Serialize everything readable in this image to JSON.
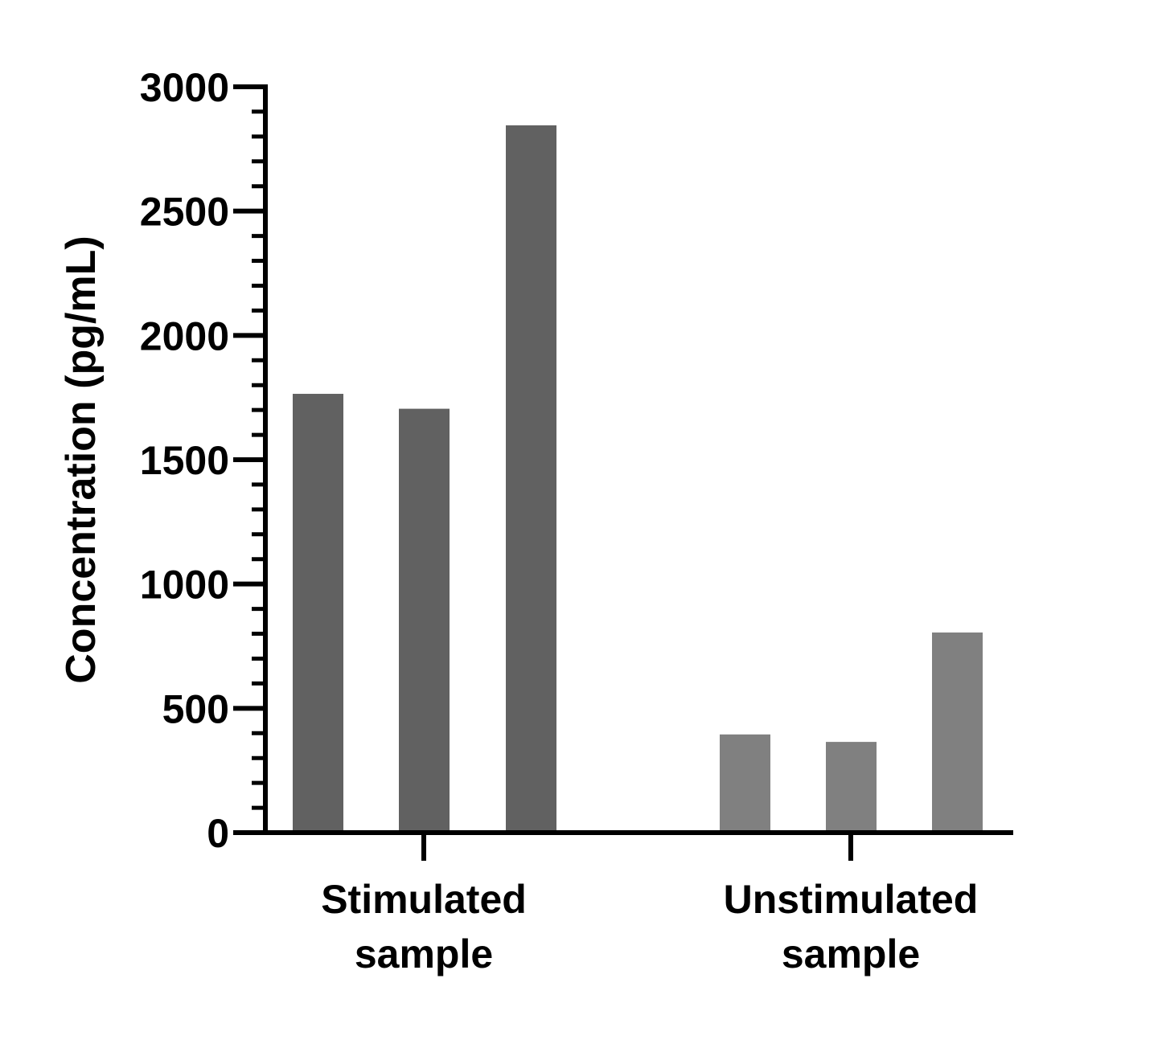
{
  "chart_data": {
    "type": "bar",
    "title": "",
    "xlabel": "",
    "ylabel": "Concentration (pg/mL)",
    "ylim": [
      0,
      3000
    ],
    "y_major_ticks": [
      0,
      500,
      1000,
      1500,
      2000,
      2500,
      3000
    ],
    "y_tick_labels": [
      "0",
      "500",
      "1000",
      "1500",
      "2000",
      "2500",
      "3000"
    ],
    "y_minor_step": 100,
    "grid": false,
    "legend": "none",
    "groups": [
      {
        "label_lines": [
          "Stimulated",
          "sample"
        ],
        "values": [
          1765,
          1705,
          2845
        ],
        "color": "#616161"
      },
      {
        "label_lines": [
          "Unstimulated",
          "sample"
        ],
        "values": [
          395,
          365,
          805
        ],
        "color": "#808080"
      }
    ]
  }
}
